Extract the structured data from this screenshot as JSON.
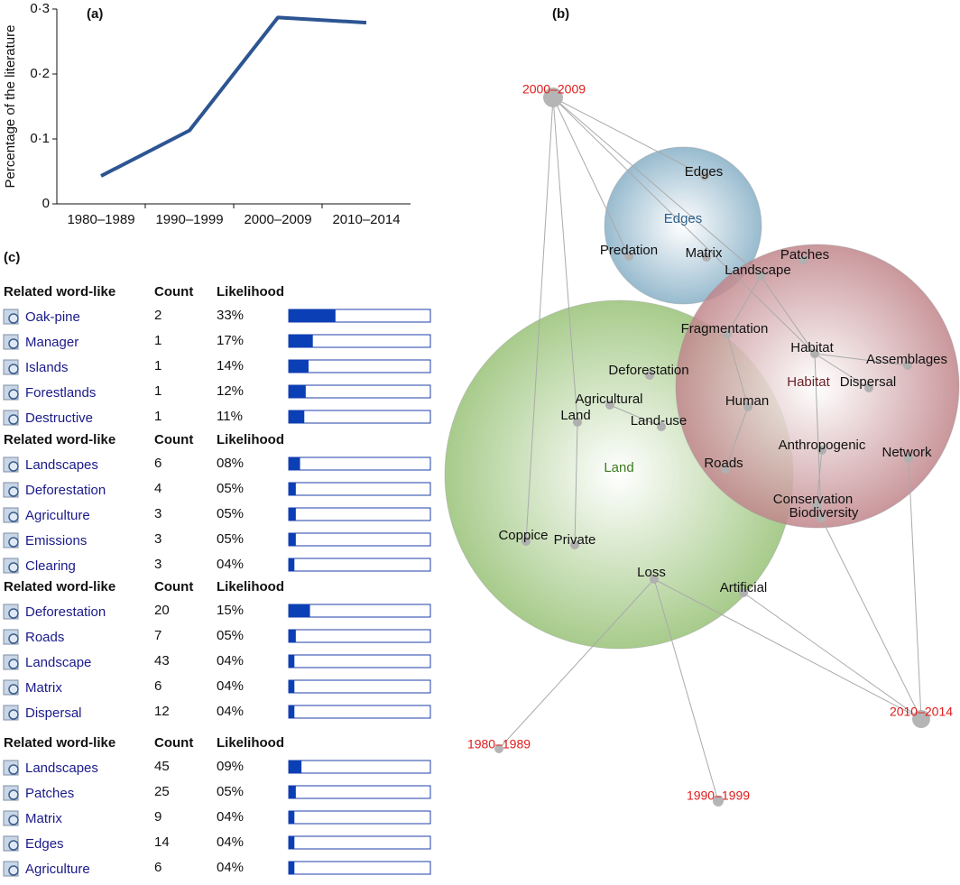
{
  "panel_labels": [
    "(a)",
    "(b)",
    "(c)"
  ],
  "chart_data": {
    "type": "line",
    "y_label": "Percentage of the literature",
    "categories": [
      "1980–1989",
      "1990–1999",
      "2000–2009",
      "2010–2014"
    ],
    "values": [
      0.043,
      0.113,
      0.287,
      0.279
    ],
    "color": "#2c5592",
    "ylim": [
      0,
      0.3
    ],
    "yticks": [
      0,
      {
        "value": 0.1,
        "label": "0·1"
      },
      {
        "value": 0.2,
        "label": "0·2"
      },
      {
        "value": 0.3,
        "label": "0·3"
      }
    ]
  },
  "tables": {
    "xlim": [
      0,
      100
    ],
    "groups": [
      {
        "header": [
          "Related word-like",
          "Count",
          "Likelihood"
        ],
        "rows": [
          {
            "word": "Oak-pine",
            "count": 2,
            "likelihood": 33,
            "likelihood_label": "33%"
          },
          {
            "word": "Manager",
            "count": 1,
            "likelihood": 17,
            "likelihood_label": "17%"
          },
          {
            "word": "Islands",
            "count": 1,
            "likelihood": 14,
            "likelihood_label": "14%"
          },
          {
            "word": "Forestlands",
            "count": 1,
            "likelihood": 12,
            "likelihood_label": "12%"
          },
          {
            "word": "Destructive",
            "count": 1,
            "likelihood": 11,
            "likelihood_label": "11%"
          }
        ]
      },
      {
        "header": [
          "Related word-like",
          "Count",
          "Likelihood"
        ],
        "rows": [
          {
            "word": "Landscapes",
            "count": 6,
            "likelihood": 8,
            "likelihood_label": "08%"
          },
          {
            "word": "Deforestation",
            "count": 4,
            "likelihood": 5,
            "likelihood_label": "05%"
          },
          {
            "word": "Agriculture",
            "count": 3,
            "likelihood": 5,
            "likelihood_label": "05%"
          },
          {
            "word": "Emissions",
            "count": 3,
            "likelihood": 5,
            "likelihood_label": "05%"
          },
          {
            "word": "Clearing",
            "count": 3,
            "likelihood": 4,
            "likelihood_label": "04%"
          }
        ]
      },
      {
        "header": [
          "Related word-like",
          "Count",
          "Likelihood"
        ],
        "rows": [
          {
            "word": "Deforestation",
            "count": 20,
            "likelihood": 15,
            "likelihood_label": "15%"
          },
          {
            "word": "Roads",
            "count": 7,
            "likelihood": 5,
            "likelihood_label": "05%"
          },
          {
            "word": "Landscape",
            "count": 43,
            "likelihood": 4,
            "likelihood_label": "04%"
          },
          {
            "word": "Matrix",
            "count": 6,
            "likelihood": 4,
            "likelihood_label": "04%"
          },
          {
            "word": "Dispersal",
            "count": 12,
            "likelihood": 4,
            "likelihood_label": "04%"
          }
        ]
      },
      {
        "header": [
          "Related word-like",
          "Count",
          "Likelihood"
        ],
        "rows": [
          {
            "word": "Landscapes",
            "count": 45,
            "likelihood": 9,
            "likelihood_label": "09%"
          },
          {
            "word": "Patches",
            "count": 25,
            "likelihood": 5,
            "likelihood_label": "05%"
          },
          {
            "word": "Matrix",
            "count": 9,
            "likelihood": 4,
            "likelihood_label": "04%"
          },
          {
            "word": "Edges",
            "count": 14,
            "likelihood": 4,
            "likelihood_label": "04%"
          },
          {
            "word": "Agriculture",
            "count": 6,
            "likelihood": 4,
            "likelihood_label": "04%"
          }
        ]
      }
    ]
  },
  "network": {
    "clusters": [
      "Edges",
      "Habitat",
      "Land"
    ],
    "periods": [
      "2000–2009",
      "2010–2014",
      "1980–1989",
      "1990–1999"
    ],
    "terms": [
      "Edges",
      "Predation",
      "Matrix",
      "Patches",
      "Landscape",
      "Fragmentation",
      "Habitat",
      "Assemblages",
      "Deforestation",
      "Dispersal",
      "Agricultural",
      "Land",
      "Human",
      "Land-use",
      "Anthropogenic",
      "Network",
      "Roads",
      "Conservation",
      "Biodiversity",
      "Coppice",
      "Private",
      "Loss",
      "Artificial"
    ]
  }
}
